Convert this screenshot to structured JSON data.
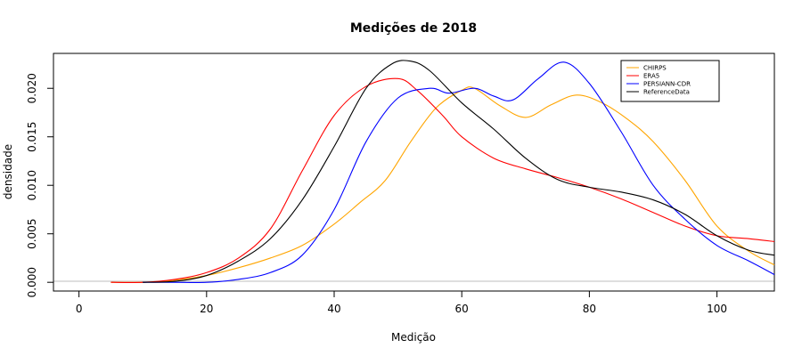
{
  "chart_data": {
    "type": "line",
    "title": "Medições de 2018",
    "xlabel": "Medição",
    "ylabel": "densidade",
    "xlim": [
      -4,
      109
    ],
    "ylim": [
      -0.0009,
      0.0236
    ],
    "xticks": [
      0,
      20,
      40,
      60,
      80,
      100
    ],
    "xtick_labels": [
      "0",
      "20",
      "40",
      "60",
      "80",
      "100"
    ],
    "yticks": [
      0.0,
      0.005,
      0.01,
      0.015,
      0.02
    ],
    "ytick_labels": [
      "0.000",
      "0.005",
      "0.010",
      "0.015",
      "0.020"
    ],
    "zero_line": true,
    "grid": false,
    "legend_position": "top-right",
    "series": [
      {
        "name": "CHIRPS",
        "color": "#FFA500",
        "x": [
          5,
          10,
          15,
          20,
          25,
          30,
          35,
          40,
          44,
          48,
          52,
          56,
          60,
          62,
          66,
          70,
          74,
          78,
          82,
          86,
          90,
          95,
          100,
          105,
          109
        ],
        "y": [
          0.0,
          0.0,
          0.0002,
          0.0007,
          0.0015,
          0.0025,
          0.0038,
          0.006,
          0.0082,
          0.0105,
          0.0145,
          0.018,
          0.0198,
          0.02,
          0.0182,
          0.017,
          0.0183,
          0.0193,
          0.0185,
          0.0168,
          0.0145,
          0.0105,
          0.0058,
          0.0032,
          0.0018
        ]
      },
      {
        "name": "ERA5",
        "color": "#FF0000",
        "x": [
          5,
          10,
          15,
          20,
          25,
          30,
          35,
          40,
          45,
          50,
          53,
          57,
          60,
          65,
          70,
          75,
          80,
          85,
          90,
          95,
          100,
          105,
          109
        ],
        "y": [
          0.0,
          0.0,
          0.0003,
          0.001,
          0.0025,
          0.0055,
          0.0115,
          0.0172,
          0.0202,
          0.021,
          0.0198,
          0.0172,
          0.015,
          0.0128,
          0.0117,
          0.0108,
          0.0098,
          0.0086,
          0.0072,
          0.0058,
          0.0048,
          0.0045,
          0.0042
        ]
      },
      {
        "name": "PERSIANN-CDR",
        "color": "#0000FF",
        "x": [
          10,
          15,
          20,
          25,
          30,
          35,
          40,
          45,
          50,
          55,
          58,
          62,
          65,
          68,
          72,
          76,
          80,
          85,
          90,
          95,
          100,
          105,
          109
        ],
        "y": [
          0.0,
          0.0,
          0.0,
          0.0003,
          0.001,
          0.0028,
          0.0075,
          0.0145,
          0.019,
          0.02,
          0.0195,
          0.02,
          0.0192,
          0.0188,
          0.021,
          0.0227,
          0.0205,
          0.0155,
          0.01,
          0.0065,
          0.0038,
          0.0022,
          0.0008
        ]
      },
      {
        "name": "ReferenceData",
        "color": "#000000",
        "x": [
          10,
          15,
          20,
          25,
          30,
          35,
          40,
          45,
          49,
          52,
          55,
          60,
          65,
          70,
          75,
          80,
          85,
          90,
          95,
          100,
          105,
          109
        ],
        "y": [
          0.0,
          0.0001,
          0.0007,
          0.0022,
          0.0045,
          0.0085,
          0.014,
          0.02,
          0.0225,
          0.0228,
          0.0218,
          0.0185,
          0.0158,
          0.0128,
          0.0106,
          0.0098,
          0.0093,
          0.0085,
          0.007,
          0.0048,
          0.0033,
          0.0028
        ]
      }
    ]
  }
}
